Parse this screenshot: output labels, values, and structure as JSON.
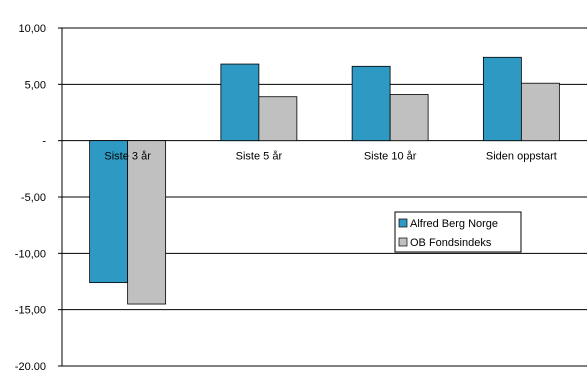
{
  "chart_data": {
    "type": "bar",
    "categories": [
      "Siste 3 år",
      "Siste 5 år",
      "Siste 10 år",
      "Siden oppstart"
    ],
    "series": [
      {
        "name": "Alfred Berg Norge",
        "values": [
          -12.6,
          6.8,
          6.6,
          7.4
        ],
        "color": "#2e9ac4"
      },
      {
        "name": "OB Fondsindeks",
        "values": [
          -14.5,
          3.9,
          4.1,
          5.1
        ],
        "color": "#c0c0c0"
      }
    ],
    "yticks": [
      {
        "value": 10,
        "label": "10,00"
      },
      {
        "value": 5,
        "label": "5,00"
      },
      {
        "value": 0,
        "label": "-"
      },
      {
        "value": -5,
        "label": "-5,00"
      },
      {
        "value": -10,
        "label": "-10,00"
      },
      {
        "value": -15,
        "label": "-15,00"
      },
      {
        "value": -20,
        "label": "-20.00"
      }
    ],
    "ylim": [
      -20,
      10
    ],
    "grid": true,
    "legend_position": "right-middle",
    "title": "",
    "xlabel": "",
    "ylabel": ""
  }
}
